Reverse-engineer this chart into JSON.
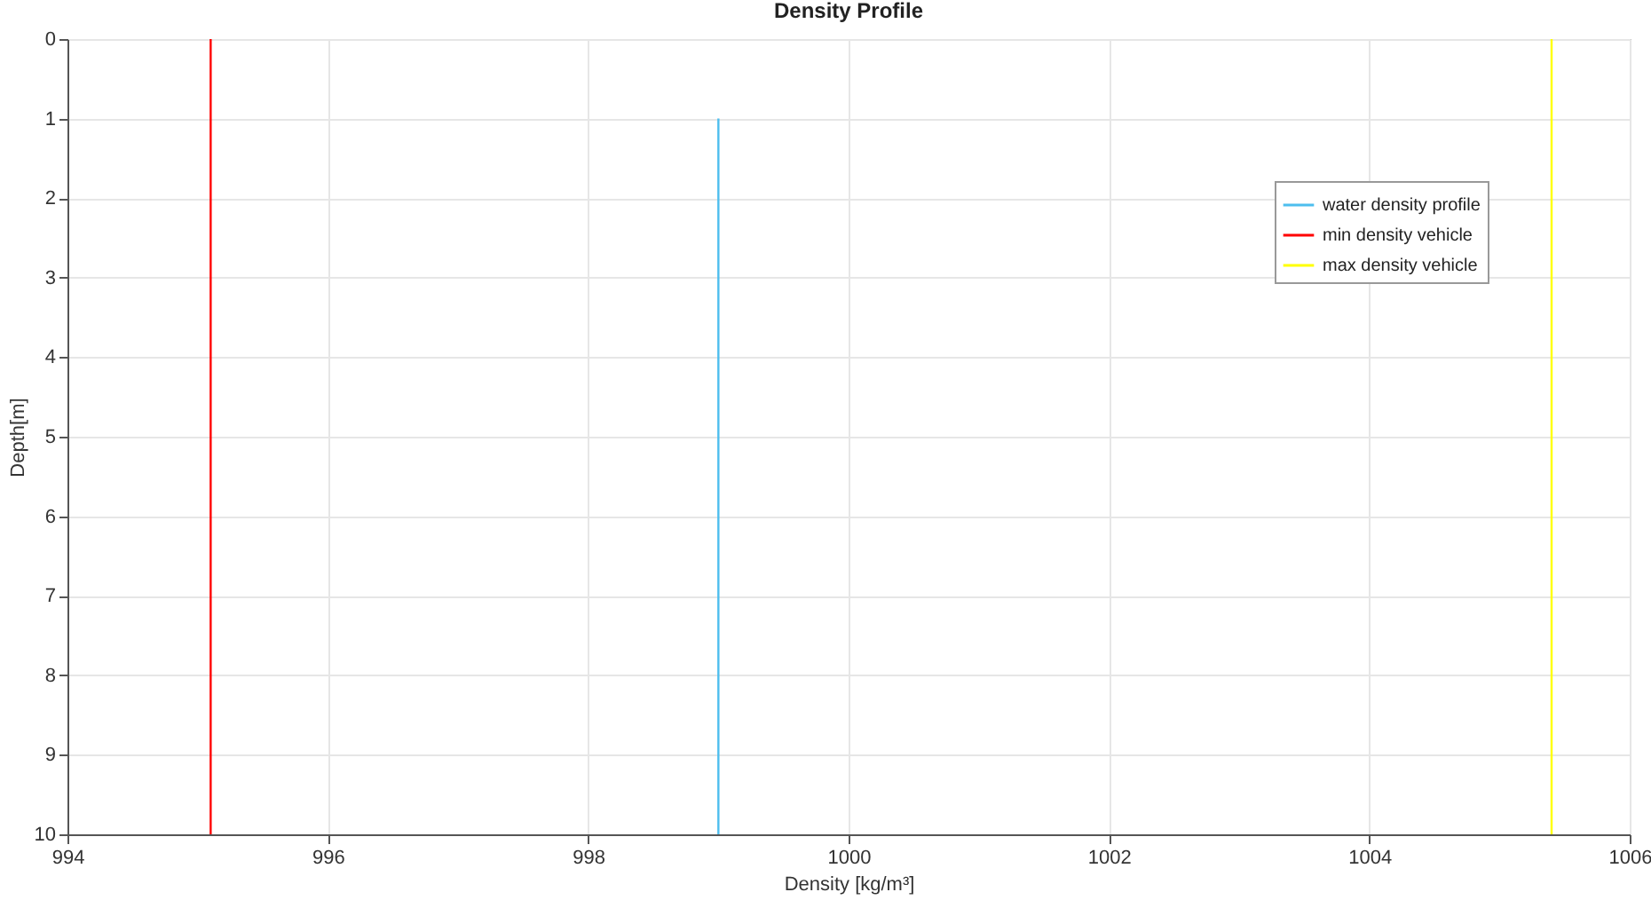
{
  "chart_data": {
    "type": "line",
    "title": "Density Profile",
    "xlabel": "Density [kg/m³]",
    "ylabel": "Depth[m]",
    "xlim": [
      994,
      1006
    ],
    "xticks": [
      994,
      996,
      998,
      1000,
      1002,
      1004,
      1006
    ],
    "ylim": [
      10,
      0
    ],
    "yticks": [
      0,
      1,
      2,
      3,
      4,
      5,
      6,
      7,
      8,
      9,
      10
    ],
    "grid": true,
    "legend": "top right",
    "series": [
      {
        "name": "water density profile",
        "color": "#4dbeee",
        "x": [
          999.0,
          999.0
        ],
        "values": [
          1,
          10
        ]
      },
      {
        "name": "min density vehicle",
        "color": "#ff0000",
        "x": [
          995.1,
          995.1
        ],
        "values": [
          0,
          10
        ]
      },
      {
        "name": "max density vehicle",
        "color": "#ffff00",
        "x": [
          1005.4,
          1005.4
        ],
        "values": [
          0,
          10
        ]
      }
    ]
  }
}
